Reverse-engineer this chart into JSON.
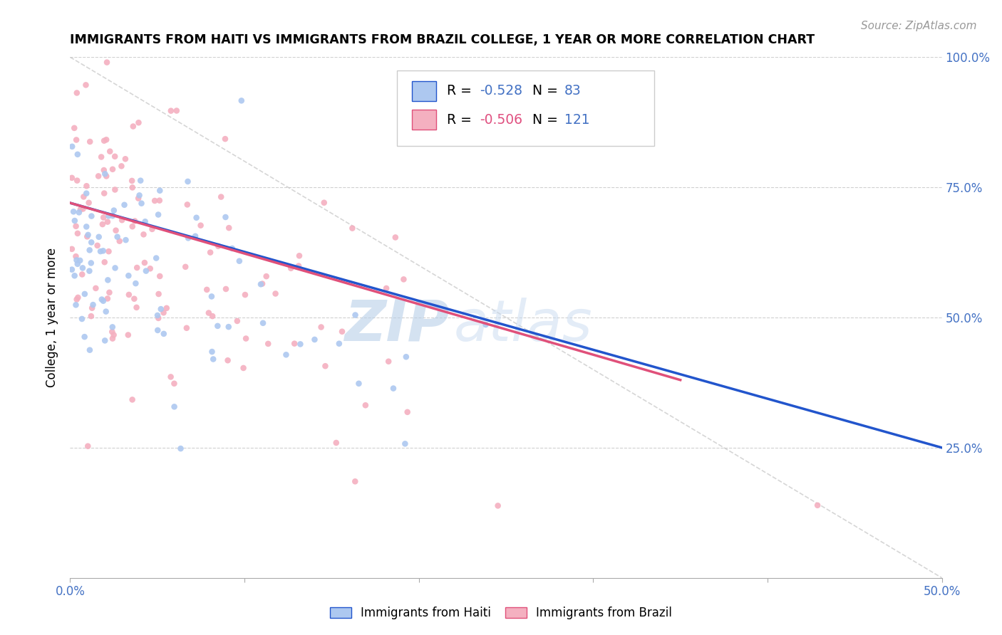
{
  "title": "IMMIGRANTS FROM HAITI VS IMMIGRANTS FROM BRAZIL COLLEGE, 1 YEAR OR MORE CORRELATION CHART",
  "source": "Source: ZipAtlas.com",
  "ylabel_label": "College, 1 year or more",
  "legend_haiti": "Immigrants from Haiti",
  "legend_brazil": "Immigrants from Brazil",
  "haiti_R": "-0.528",
  "haiti_N": "83",
  "brazil_R": "-0.506",
  "brazil_N": "121",
  "haiti_color": "#adc8f0",
  "haiti_line_color": "#2255cc",
  "brazil_color": "#f4b0c0",
  "brazil_line_color": "#e0507a",
  "scatter_alpha": 0.9,
  "dot_size": 38,
  "xlim": [
    0.0,
    0.5
  ],
  "ylim": [
    0.0,
    1.0
  ],
  "watermark_zip": "ZIP",
  "watermark_atlas": "atlas",
  "grid_color": "#d0d0d0",
  "ref_line_color": "#c0c0c0",
  "ytick_labels": [
    "",
    "25.0%",
    "50.0%",
    "75.0%",
    "100.0%"
  ],
  "xtick_labels": [
    "0.0%",
    "",
    "",
    "",
    "",
    "50.0%"
  ],
  "right_ytick_labels": [
    "100.0%",
    "75.0%",
    "50.0%",
    "25.0%"
  ],
  "right_ytick_pos": [
    1.0,
    0.75,
    0.5,
    0.25
  ]
}
